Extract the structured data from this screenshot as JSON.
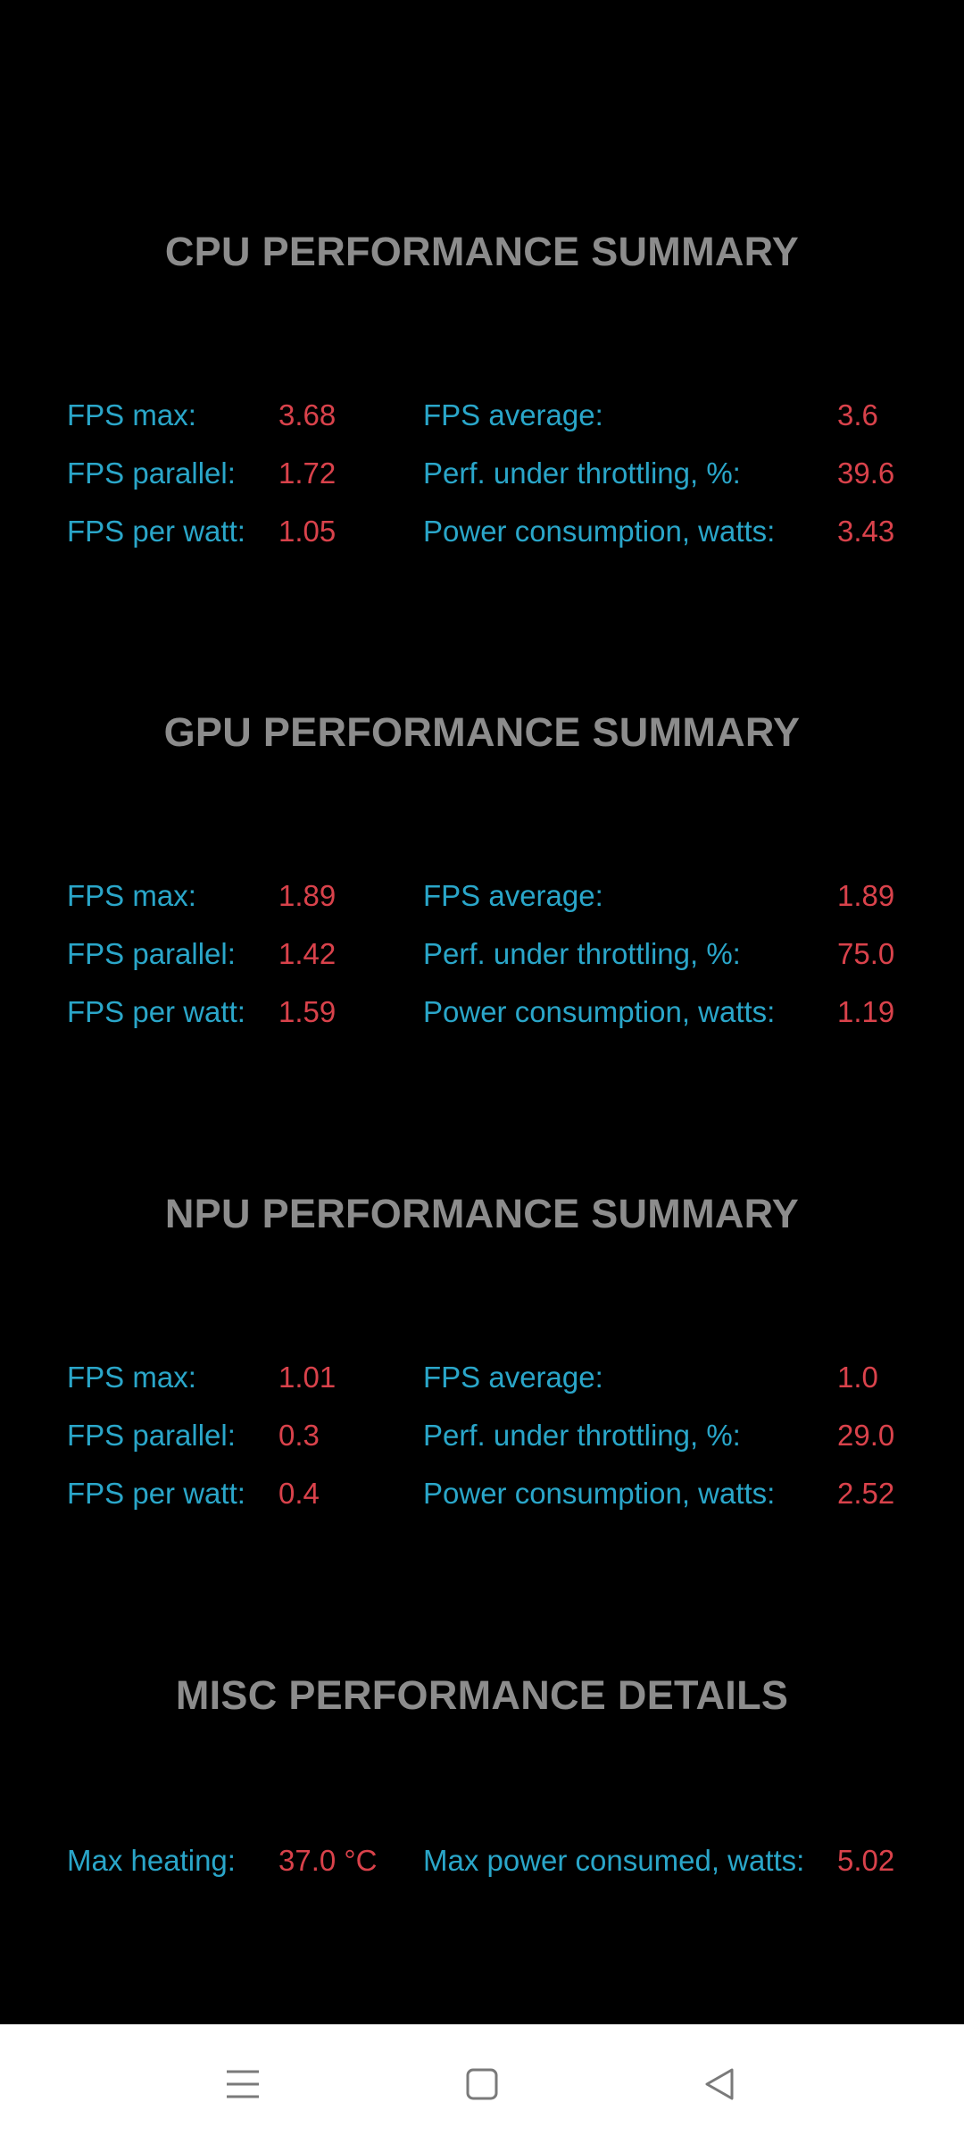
{
  "sections": [
    {
      "title": "CPU PERFORMANCE SUMMARY",
      "rows": [
        {
          "l_label": "FPS max:",
          "l_value": "3.68",
          "r_label": "FPS average:",
          "r_value": "3.6"
        },
        {
          "l_label": "FPS parallel:",
          "l_value": "1.72",
          "r_label": "Perf. under throttling, %:",
          "r_value": "39.6"
        },
        {
          "l_label": "FPS per watt:",
          "l_value": "1.05",
          "r_label": "Power consumption, watts:",
          "r_value": "3.43"
        }
      ]
    },
    {
      "title": "GPU PERFORMANCE SUMMARY",
      "rows": [
        {
          "l_label": "FPS max:",
          "l_value": "1.89",
          "r_label": "FPS average:",
          "r_value": "1.89"
        },
        {
          "l_label": "FPS parallel:",
          "l_value": "1.42",
          "r_label": "Perf. under throttling, %:",
          "r_value": "75.0"
        },
        {
          "l_label": "FPS per watt:",
          "l_value": "1.59",
          "r_label": "Power consumption, watts:",
          "r_value": "1.19"
        }
      ]
    },
    {
      "title": "NPU PERFORMANCE SUMMARY",
      "rows": [
        {
          "l_label": "FPS max:",
          "l_value": "1.01",
          "r_label": "FPS average:",
          "r_value": "1.0"
        },
        {
          "l_label": "FPS parallel:",
          "l_value": "0.3",
          "r_label": "Perf. under throttling, %:",
          "r_value": "29.0"
        },
        {
          "l_label": "FPS per watt:",
          "l_value": "0.4",
          "r_label": "Power consumption, watts:",
          "r_value": "2.52"
        }
      ]
    },
    {
      "title": "MISC PERFORMANCE DETAILS",
      "rows": [
        {
          "l_label": "Max heating:",
          "l_value": "37.0 °C",
          "r_label": "Max power consumed, watts:",
          "r_value": "5.02"
        }
      ]
    }
  ],
  "colors": {
    "background": "#000000",
    "title": "#8c8c8c",
    "label": "#2aa6c9",
    "value": "#d9424b",
    "navbar": "#ffffff",
    "nav_icon": "#7a7a7a"
  },
  "navbar": {
    "icons": [
      "menu-icon",
      "home-square-icon",
      "back-triangle-icon"
    ]
  }
}
